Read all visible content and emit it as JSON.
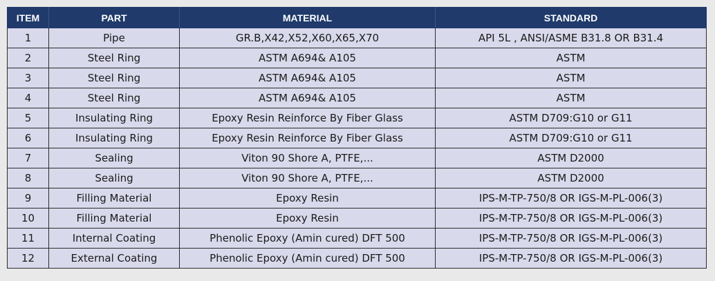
{
  "table": {
    "headers": [
      "ITEM",
      "PART",
      "MATERIAL",
      "STANDARD"
    ],
    "rows": [
      [
        "1",
        "Pipe",
        "GR.B,X42,X52,X60,X65,X70",
        "API 5L , ANSI/ASME B31.8 OR B31.4"
      ],
      [
        "2",
        "Steel Ring",
        "ASTM A694& A105",
        "ASTM"
      ],
      [
        "3",
        "Steel Ring",
        "ASTM A694& A105",
        "ASTM"
      ],
      [
        "4",
        "Steel Ring",
        "ASTM A694& A105",
        "ASTM"
      ],
      [
        "5",
        "Insulating Ring",
        "Epoxy Resin Reinforce By Fiber Glass",
        "ASTM D709:G10 or G11"
      ],
      [
        "6",
        "Insulating Ring",
        "Epoxy Resin Reinforce By Fiber Glass",
        "ASTM D709:G10 or G11"
      ],
      [
        "7",
        "Sealing",
        "Viton 90 Shore A, PTFE,...",
        "ASTM D2000"
      ],
      [
        "8",
        "Sealing",
        "Viton 90 Shore A, PTFE,...",
        "ASTM D2000"
      ],
      [
        "9",
        "Filling Material",
        "Epoxy Resin",
        "IPS-M-TP-750/8 OR IGS-M-PL-006(3)"
      ],
      [
        "10",
        "Filling Material",
        "Epoxy Resin",
        "IPS-M-TP-750/8 OR IGS-M-PL-006(3)"
      ],
      [
        "11",
        "Internal Coating",
        "Phenolic Epoxy (Amin cured) DFT 500",
        "IPS-M-TP-750/8 OR IGS-M-PL-006(3)"
      ],
      [
        "12",
        "External Coating",
        "Phenolic Epoxy (Amin cured) DFT 500",
        "IPS-M-TP-750/8 OR IGS-M-PL-006(3)"
      ]
    ]
  },
  "colors": {
    "header_background": "#1f3a6b",
    "header_text": "#ffffff",
    "cell_background": "#d9d9ec",
    "page_background": "#e9e9e9"
  }
}
